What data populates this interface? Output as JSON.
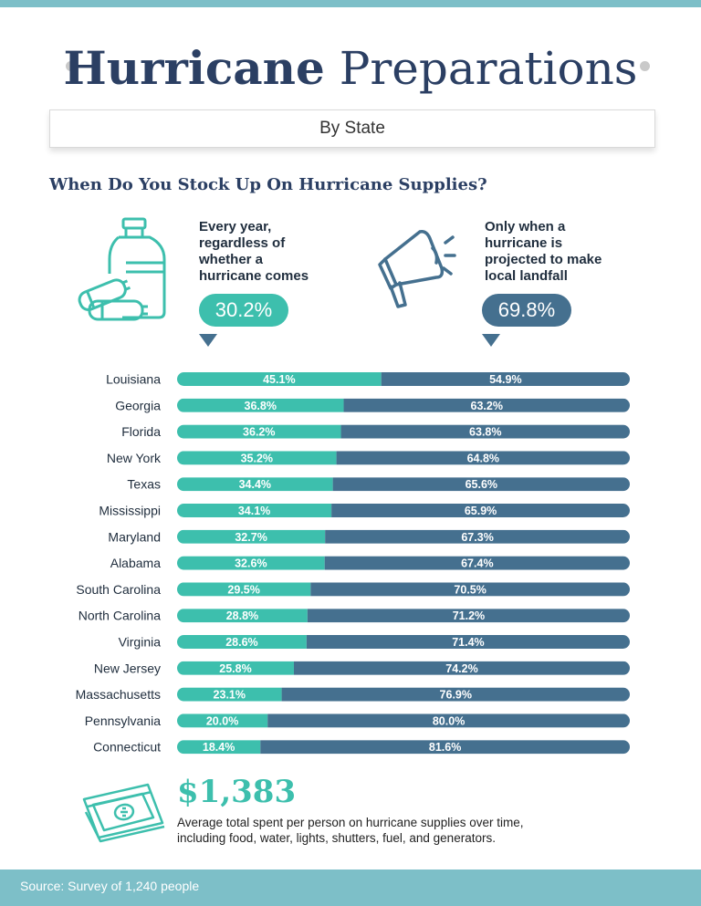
{
  "header": {
    "title_bold": "Hurricane",
    "title_rest": "Preparations",
    "subtitle": "By State"
  },
  "question": "When Do You Stock Up On Hurricane Supplies?",
  "options": [
    {
      "text_lines": [
        "Every year,",
        "regardless of",
        "whether a",
        "hurricane comes"
      ],
      "value": "30.2%",
      "color": "#3dbfad"
    },
    {
      "text_lines": [
        "Only when a",
        "hurricane is",
        "projected to make",
        "local landfall"
      ],
      "value": "69.8%",
      "color": "#45708f"
    }
  ],
  "colors": {
    "teal": "#3dbfad",
    "navy": "#45708f",
    "title": "#2b3f63",
    "footer": "#7dbfc8"
  },
  "icons": [
    "water-jug-batteries-icon",
    "megaphone-icon",
    "cash-icon"
  ],
  "chart_data": {
    "type": "bar",
    "stacked": true,
    "orientation": "horizontal",
    "categories": [
      "Louisiana",
      "Georgia",
      "Florida",
      "New York",
      "Texas",
      "Mississippi",
      "Maryland",
      "Alabama",
      "South Carolina",
      "North Carolina",
      "Virginia",
      "New Jersey",
      "Massachusetts",
      "Pennsylvania",
      "Connecticut"
    ],
    "series": [
      {
        "values": [
          45.1,
          36.8,
          36.2,
          35.2,
          34.4,
          34.1,
          32.7,
          32.6,
          29.5,
          28.8,
          28.6,
          25.8,
          23.1,
          20.0,
          18.4
        ],
        "labels": [
          "45.1%",
          "36.8%",
          "36.2%",
          "35.2%",
          "34.4%",
          "34.1%",
          "32.7%",
          "32.6%",
          "29.5%",
          "28.8%",
          "28.6%",
          "25.8%",
          "23.1%",
          "20.0%",
          "18.4%"
        ],
        "color": "#3dbfad"
      },
      {
        "values": [
          54.9,
          63.2,
          63.8,
          64.8,
          65.6,
          65.9,
          67.3,
          67.4,
          70.5,
          71.2,
          71.4,
          74.2,
          76.9,
          80.0,
          81.6
        ],
        "labels": [
          "54.9%",
          "63.2%",
          "63.8%",
          "64.8%",
          "65.6%",
          "65.9%",
          "67.3%",
          "67.4%",
          "70.5%",
          "71.2%",
          "71.4%",
          "74.2%",
          "76.9%",
          "80.0%",
          "81.6%"
        ],
        "color": "#45708f"
      }
    ],
    "xlim": [
      0,
      100
    ]
  },
  "spend": {
    "amount": "$1,383",
    "desc_line1": "Average total spent per person on hurricane supplies over time,",
    "desc_line2": "including food, water, lights, shutters, fuel, and generators."
  },
  "footer": {
    "source": "Source: Survey of 1,240 people"
  }
}
